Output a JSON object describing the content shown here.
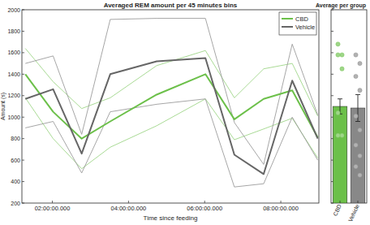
{
  "chart_data": [
    {
      "type": "line",
      "title": "Averaged REM amount per 45 minutes bins",
      "x_label": "Time since feeding",
      "y_label": "Amount (s)",
      "x": [
        1.29,
        2.02,
        2.77,
        3.52,
        4.74,
        6.02,
        6.78,
        7.55,
        8.3,
        8.97
      ],
      "xlim": [
        1.2,
        9.0
      ],
      "xticks": [
        {
          "value": 2,
          "label": "02:00:00.000"
        },
        {
          "value": 4,
          "label": "04:00:00.000"
        },
        {
          "value": 6,
          "label": "06:00:00.000"
        },
        {
          "value": 8,
          "label": "08:00:00.000"
        }
      ],
      "ylim": [
        200,
        2000
      ],
      "yticks": [
        200,
        400,
        600,
        800,
        1000,
        1200,
        1400,
        1600,
        1800,
        2000
      ],
      "grid": false,
      "legend": "upper right",
      "series": [
        {
          "name": "CBD",
          "color": "#6cc04a",
          "values": [
            1400,
            1050,
            800,
            960,
            1210,
            1400,
            980,
            1170,
            1250,
            810
          ],
          "upper": [
            1640,
            1330,
            1080,
            1180,
            1480,
            1620,
            1180,
            1450,
            1500,
            1010
          ],
          "lower": [
            1180,
            800,
            520,
            720,
            920,
            1170,
            790,
            890,
            990,
            620
          ]
        },
        {
          "name": "Vehicle",
          "color": "#666666",
          "values": [
            1170,
            1260,
            660,
            1400,
            1520,
            1550,
            650,
            470,
            1340,
            800
          ],
          "upper": [
            1500,
            1570,
            840,
            1910,
            1920,
            1920,
            950,
            560,
            1680,
            1020
          ],
          "lower": [
            900,
            960,
            480,
            1050,
            1120,
            1170,
            350,
            380,
            1000,
            600
          ]
        }
      ]
    },
    {
      "type": "bar",
      "title": "Average per group",
      "categories": [
        "CBD",
        "Vehicle"
      ],
      "values": [
        1100,
        1085
      ],
      "errors": [
        70,
        125
      ],
      "points": [
        [
          1680,
          1580,
          1580,
          1450,
          1040,
          830,
          830
        ],
        [
          1580,
          1500,
          1380,
          1250,
          1010,
          880,
          740,
          640,
          540,
          460
        ]
      ],
      "colors": [
        "#6cc04a",
        "#888888"
      ],
      "ylim": [
        200,
        2000
      ],
      "yticks": [
        200,
        400,
        600,
        800,
        1000,
        1200,
        1400,
        1600,
        1800,
        2000
      ],
      "grid": false,
      "tick_labels": "x"
    }
  ]
}
